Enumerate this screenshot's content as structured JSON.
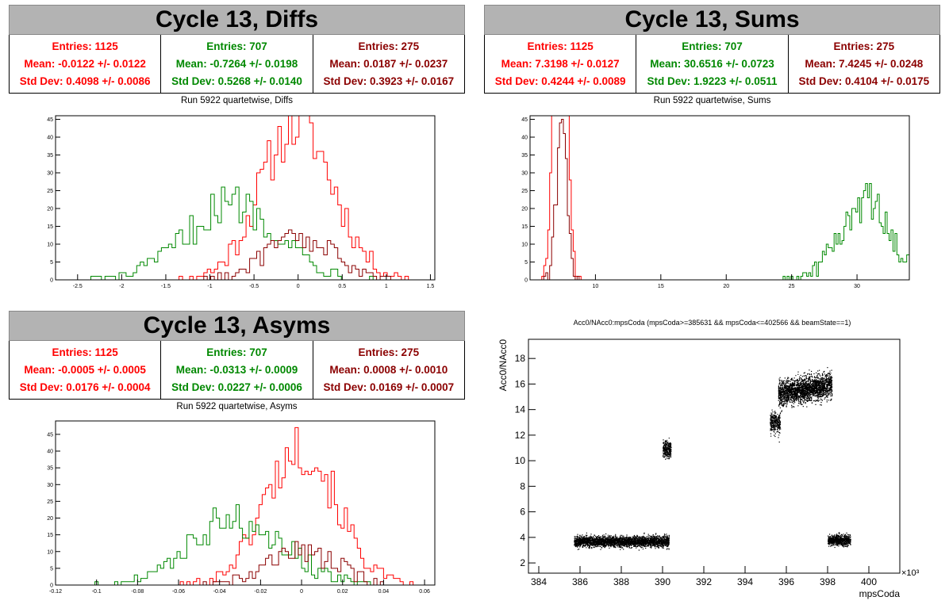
{
  "colors": {
    "s1": "#ff0000",
    "s2": "#008800",
    "s3": "#8b0000"
  },
  "diffs": {
    "banner": "Cycle 13, Diffs",
    "stats": [
      {
        "entries": "Entries: 1125",
        "mean": "Mean: -0.0122 +/- 0.0122",
        "std": "Std Dev: 0.4098 +/- 0.0086"
      },
      {
        "entries": "Entries: 707",
        "mean": "Mean: -0.7264 +/- 0.0198",
        "std": "Std Dev: 0.5268 +/- 0.0140"
      },
      {
        "entries": "Entries: 275",
        "mean": "Mean: 0.0187 +/- 0.0237",
        "std": "Std Dev: 0.3923 +/- 0.0167"
      }
    ]
  },
  "sums": {
    "banner": "Cycle 13, Sums",
    "stats": [
      {
        "entries": "Entries: 1125",
        "mean": "Mean: 7.3198 +/- 0.0127",
        "std": "Std Dev: 0.4244 +/- 0.0089"
      },
      {
        "entries": "Entries: 707",
        "mean": "Mean: 30.6516 +/- 0.0723",
        "std": "Std Dev: 1.9223 +/- 0.0511"
      },
      {
        "entries": "Entries: 275",
        "mean": "Mean: 7.4245 +/- 0.0248",
        "std": "Std Dev: 0.4104 +/- 0.0175"
      }
    ]
  },
  "asyms": {
    "banner": "Cycle 13, Asyms",
    "stats": [
      {
        "entries": "Entries: 1125",
        "mean": "Mean: -0.0005 +/- 0.0005",
        "std": "Std Dev: 0.0176 +/- 0.0004"
      },
      {
        "entries": "Entries: 707",
        "mean": "Mean: -0.0313 +/- 0.0009",
        "std": "Std Dev: 0.0227 +/- 0.0006"
      },
      {
        "entries": "Entries: 275",
        "mean": "Mean: 0.0008 +/- 0.0010",
        "std": "Std Dev: 0.0169 +/- 0.0007"
      }
    ]
  },
  "chart_data": [
    {
      "id": "diffs",
      "type": "histogram",
      "title": "Run 5922 quartetwise, Diffs",
      "xlim": [
        -2.75,
        1.55
      ],
      "ylim": [
        0,
        46
      ],
      "xticks": [
        -2.5,
        -2,
        -1.5,
        -1,
        -0.5,
        0,
        0.5,
        1,
        1.5
      ],
      "xticklabels": [
        "-2.5",
        "-2",
        "-1.5",
        "-1",
        "-0.5",
        "0",
        "0.5",
        "1",
        "1.5"
      ],
      "yticks": [
        0,
        5,
        10,
        15,
        20,
        25,
        30,
        35,
        40,
        45
      ],
      "bin_width": 0.04,
      "series": [
        {
          "entries": 1125,
          "mean": -0.0122,
          "std": 0.4098
        },
        {
          "entries": 707,
          "mean": -0.7264,
          "std": 0.5268
        },
        {
          "entries": 275,
          "mean": 0.0187,
          "std": 0.3923
        }
      ]
    },
    {
      "id": "sums",
      "type": "histogram",
      "title": "Run 5922 quartetwise, Sums",
      "xlim": [
        5,
        34
      ],
      "ylim": [
        0,
        46
      ],
      "xticks": [
        10,
        15,
        20,
        25,
        30
      ],
      "xticklabels": [
        "10",
        "15",
        "20",
        "25",
        "30"
      ],
      "yticks": [
        0,
        5,
        10,
        15,
        20,
        25,
        30,
        35,
        40,
        45
      ],
      "bin_width": 0.15,
      "series": [
        {
          "entries": 1125,
          "mean": 7.3198,
          "std": 0.4244
        },
        {
          "entries": 707,
          "mean": 30.6516,
          "std": 1.9223
        },
        {
          "entries": 275,
          "mean": 7.4245,
          "std": 0.4104
        }
      ]
    },
    {
      "id": "asyms",
      "type": "histogram",
      "title": "Run 5922 quartetwise, Asyms",
      "xlim": [
        -0.12,
        0.065
      ],
      "ylim": [
        0,
        49
      ],
      "xticks": [
        -0.12,
        -0.1,
        -0.08,
        -0.06,
        -0.04,
        -0.02,
        0,
        0.02,
        0.04,
        0.06
      ],
      "xticklabels": [
        "-0.12",
        "-0.1",
        "-0.08",
        "-0.06",
        "-0.04",
        "-0.02",
        "0",
        "0.02",
        "0.04",
        "0.06"
      ],
      "yticks": [
        0,
        5,
        10,
        15,
        20,
        25,
        30,
        35,
        40,
        45
      ],
      "bin_width": 0.0016,
      "series": [
        {
          "entries": 1125,
          "mean": -0.0005,
          "std": 0.0176
        },
        {
          "entries": 707,
          "mean": -0.0313,
          "std": 0.0227
        },
        {
          "entries": 275,
          "mean": 0.0008,
          "std": 0.0169
        }
      ]
    },
    {
      "id": "scatter",
      "type": "scatter",
      "title": "Acc0/NAcc0:mpsCoda (mpsCoda>=385631 && mpsCoda<=402566 && beamState==1)",
      "xlabel": "mpsCoda",
      "ylabel": "Acc0/NAcc0",
      "x_multiplier": "×10³",
      "xlim": [
        383.5,
        401.5
      ],
      "ylim": [
        1.2,
        19.5
      ],
      "xticks": [
        384,
        386,
        388,
        390,
        392,
        394,
        396,
        398,
        400
      ],
      "yticks": [
        2,
        4,
        6,
        8,
        10,
        12,
        14,
        16,
        18
      ],
      "clusters": [
        {
          "x": [
            385.7,
            390.3
          ],
          "y_center": 3.7,
          "y_spread": 0.35
        },
        {
          "x": [
            390.0,
            390.4
          ],
          "y_center": 10.9,
          "y_spread": 0.6
        },
        {
          "x": [
            395.2,
            395.7
          ],
          "y_center": 13.0,
          "y_spread": 0.7
        },
        {
          "x": [
            395.6,
            398.2
          ],
          "y_center": 15.6,
          "y_spread": 0.8
        },
        {
          "x": [
            398.0,
            399.1
          ],
          "y_center": 3.8,
          "y_spread": 0.35
        }
      ]
    }
  ]
}
